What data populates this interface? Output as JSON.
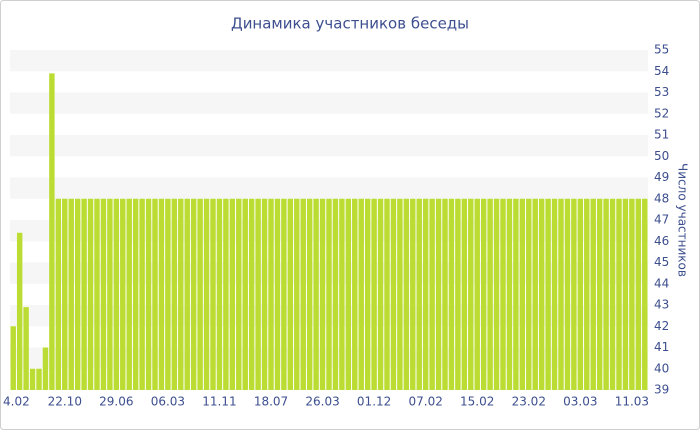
{
  "chart_data": {
    "type": "bar",
    "title": "Динамика участников беседы",
    "y_label": "Число участников",
    "categories": [
      "4.02",
      null,
      null,
      null,
      null,
      null,
      null,
      null,
      "22.10",
      null,
      null,
      null,
      null,
      null,
      null,
      null,
      "29.06",
      null,
      null,
      null,
      null,
      null,
      null,
      null,
      "06.03",
      null,
      null,
      null,
      null,
      null,
      null,
      null,
      "11.11",
      null,
      null,
      null,
      null,
      null,
      null,
      null,
      "18.07",
      null,
      null,
      null,
      null,
      null,
      null,
      null,
      "26.03",
      null,
      null,
      null,
      null,
      null,
      null,
      null,
      "01.12",
      null,
      null,
      null,
      null,
      null,
      null,
      null,
      "07.02",
      null,
      null,
      null,
      null,
      null,
      null,
      null,
      "15.02",
      null,
      null,
      null,
      null,
      null,
      null,
      null,
      "23.02",
      null,
      null,
      null,
      null,
      null,
      null,
      null,
      "03.03",
      null,
      null,
      null,
      null,
      null,
      null,
      null,
      "11.03",
      null,
      null
    ],
    "values": [
      42,
      46.4,
      42.9,
      40,
      40,
      41,
      53.9,
      48,
      48,
      48,
      48,
      48,
      48,
      48,
      48,
      48,
      48,
      48,
      48,
      48,
      48,
      48,
      48,
      48,
      48,
      48,
      48,
      48,
      48,
      48,
      48,
      48,
      48,
      48,
      48,
      48,
      48,
      48,
      48,
      48,
      48,
      48,
      48,
      48,
      48,
      48,
      48,
      48,
      48,
      48,
      48,
      48,
      48,
      48,
      48,
      48,
      48,
      48,
      48,
      48,
      48,
      48,
      48,
      48,
      48,
      48,
      48,
      48,
      48,
      48,
      48,
      48,
      48,
      48,
      48,
      48,
      48,
      48,
      48,
      48,
      48,
      48,
      48,
      48,
      48,
      48,
      48,
      48,
      48,
      48,
      48,
      48,
      48,
      48,
      48,
      48,
      48,
      48,
      48
    ],
    "color": "#bbdd33",
    "ylim": [
      39,
      55
    ],
    "yticks": [
      39,
      40,
      41,
      42,
      43,
      44,
      45,
      46,
      47,
      48,
      49,
      50,
      51,
      52,
      53,
      54,
      55
    ],
    "grid": true
  }
}
